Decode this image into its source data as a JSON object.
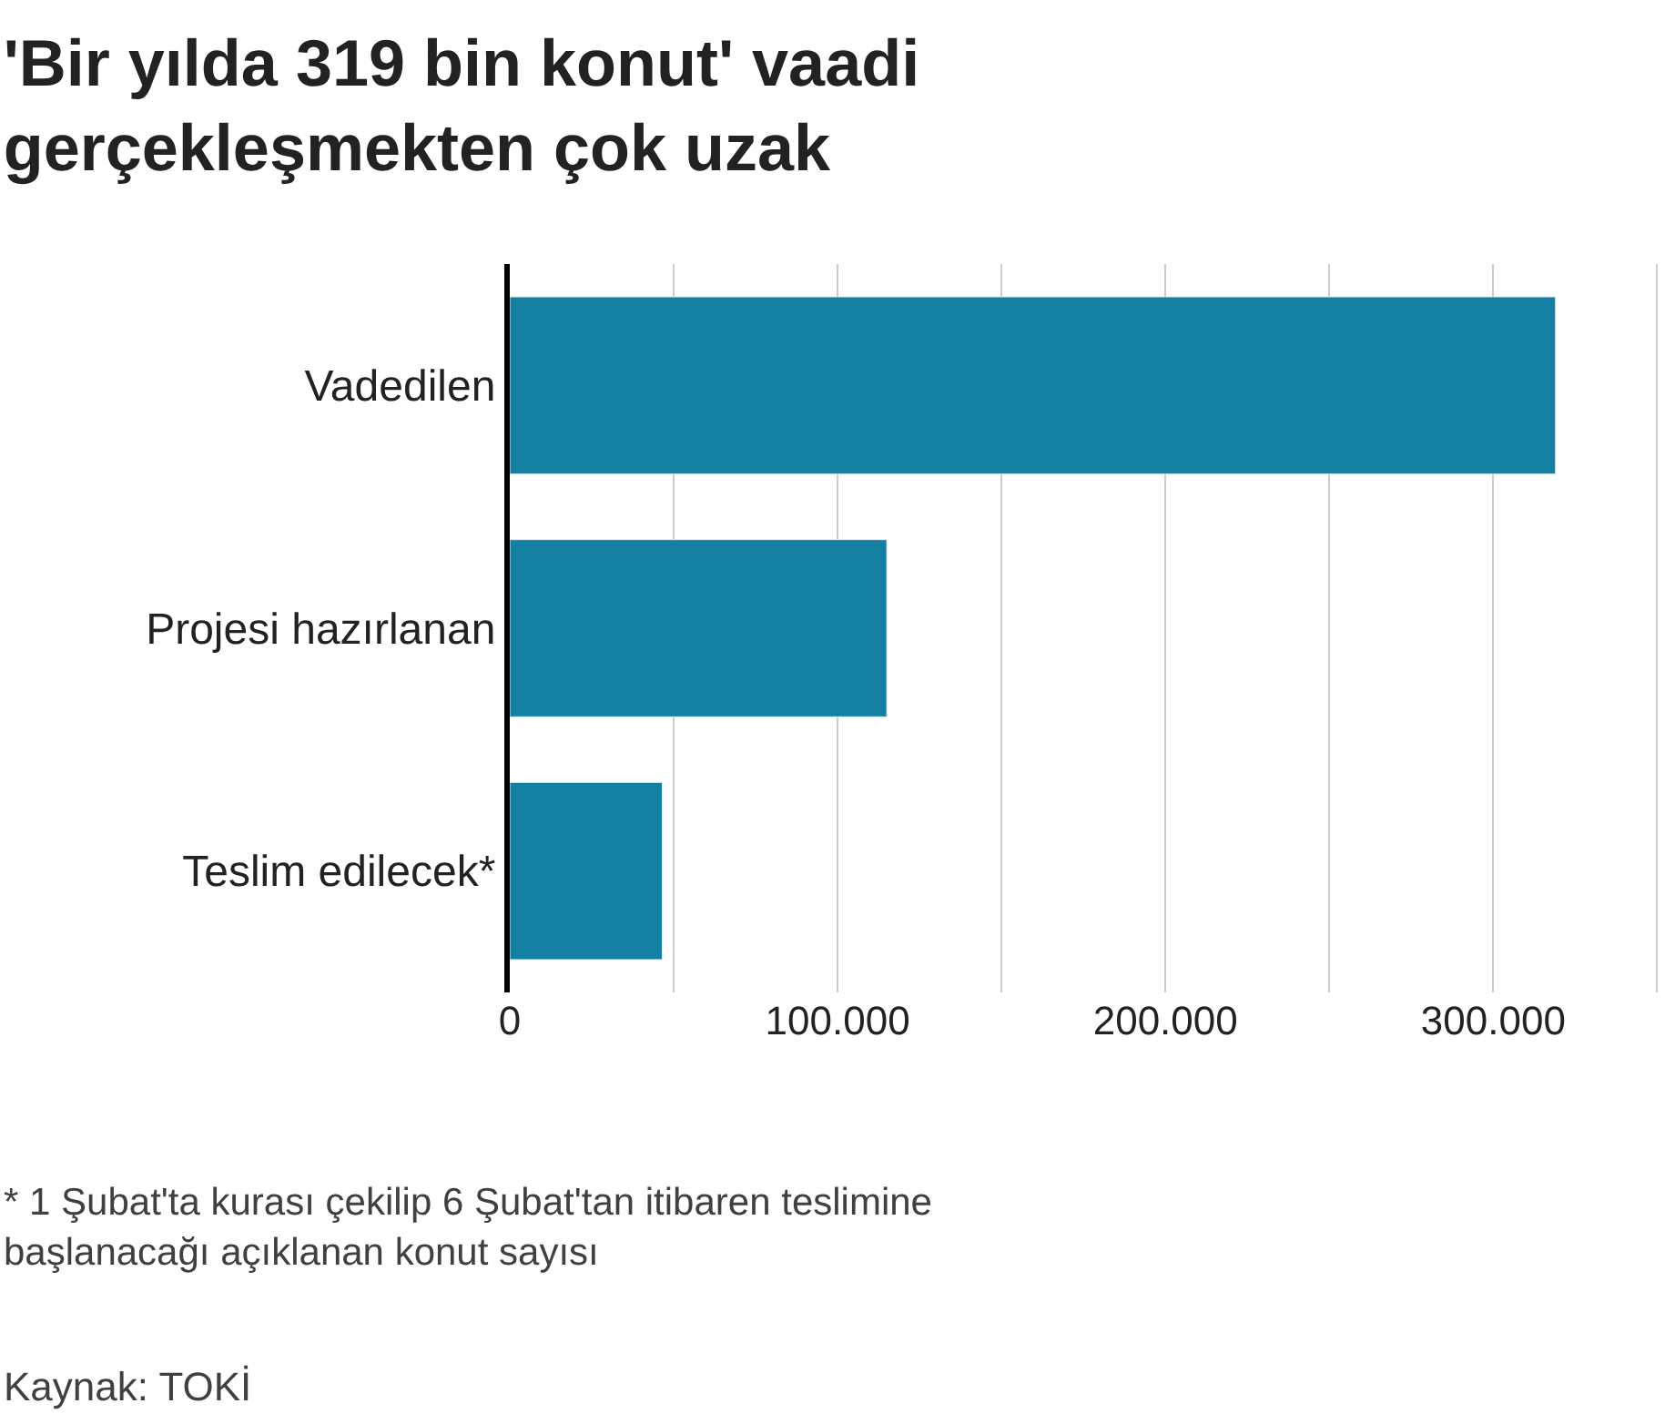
{
  "chart_data": {
    "type": "bar",
    "orientation": "horizontal",
    "title": "'Bir yılda 319 bin konut' vaadi gerçekleşmekten çok uzak",
    "categories": [
      "Vadedilen",
      "Projesi hazırlanan",
      "Teslim edilecek*"
    ],
    "values": [
      319000,
      115000,
      46500
    ],
    "color": "#1380a1",
    "xlim": [
      0,
      351000
    ],
    "xticks": [
      0,
      {
        "value": 50000,
        "label": null
      },
      {
        "value": 100000,
        "label": "100.000"
      },
      {
        "value": 150000,
        "label": null
      },
      {
        "value": 200000,
        "label": "200.000"
      },
      {
        "value": 250000,
        "label": null
      },
      {
        "value": 300000,
        "label": "300.000"
      },
      {
        "value": 350000,
        "label": null
      }
    ],
    "grid": "x",
    "legend": false,
    "annotations": [
      "* 1 Şubat'ta kurası çekilip 6 Şubat'tan itibaren teslimine başlanacağı açıklanan konut sayısı",
      "Kaynak: TOKİ"
    ]
  }
}
